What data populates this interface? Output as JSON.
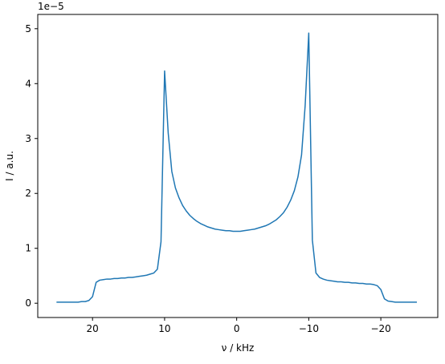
{
  "chart_data": {
    "type": "line",
    "xlabel": "ν / kHz",
    "ylabel": "I / a.u.",
    "y_offset_label": "1e−5",
    "x": [
      25,
      24.5,
      24,
      23.5,
      23,
      22.5,
      22,
      21.5,
      21,
      20.5,
      20,
      19.5,
      19,
      18.5,
      18,
      17.5,
      17,
      16.5,
      16,
      15.5,
      15,
      14.5,
      14,
      13.5,
      13,
      12.5,
      12,
      11.5,
      11,
      10.5,
      10,
      9.5,
      9,
      8.5,
      8,
      7.5,
      7,
      6.5,
      6,
      5.5,
      5,
      4.5,
      4,
      3.5,
      3,
      2.5,
      2,
      1.5,
      1,
      0.5,
      0,
      -0.5,
      -1,
      -1.5,
      -2,
      -2.5,
      -3,
      -3.5,
      -4,
      -4.5,
      -5,
      -5.5,
      -6,
      -6.5,
      -7,
      -7.5,
      -8,
      -8.5,
      -9,
      -9.5,
      -10,
      -10.5,
      -11,
      -11.5,
      -12,
      -12.5,
      -13,
      -13.5,
      -14,
      -14.5,
      -15,
      -15.5,
      -16,
      -16.5,
      -17,
      -17.5,
      -18,
      -18.5,
      -19,
      -19.5,
      -20,
      -20.5,
      -21,
      -21.5,
      -22,
      -22.5,
      -23,
      -23.5,
      -24,
      -24.5,
      -25
    ],
    "series": [
      {
        "color": "#1f77b4",
        "values": [
          0.02,
          0.02,
          0.02,
          0.02,
          0.02,
          0.02,
          0.02,
          0.03,
          0.03,
          0.05,
          0.12,
          0.38,
          0.42,
          0.43,
          0.44,
          0.44,
          0.45,
          0.45,
          0.46,
          0.46,
          0.47,
          0.47,
          0.48,
          0.49,
          0.5,
          0.51,
          0.53,
          0.55,
          0.62,
          1.12,
          4.23,
          3.1,
          2.4,
          2.1,
          1.92,
          1.78,
          1.68,
          1.6,
          1.54,
          1.49,
          1.45,
          1.42,
          1.39,
          1.37,
          1.35,
          1.34,
          1.33,
          1.32,
          1.32,
          1.31,
          1.31,
          1.31,
          1.32,
          1.33,
          1.34,
          1.35,
          1.37,
          1.39,
          1.41,
          1.44,
          1.48,
          1.52,
          1.58,
          1.65,
          1.75,
          1.88,
          2.05,
          2.3,
          2.7,
          3.6,
          4.92,
          1.15,
          0.55,
          0.47,
          0.44,
          0.42,
          0.41,
          0.4,
          0.39,
          0.39,
          0.38,
          0.38,
          0.37,
          0.37,
          0.36,
          0.36,
          0.35,
          0.35,
          0.34,
          0.32,
          0.25,
          0.08,
          0.04,
          0.03,
          0.02,
          0.02,
          0.02,
          0.02,
          0.02,
          0.02,
          0.02
        ]
      }
    ],
    "xlim": [
      27.6,
      -27.9
    ],
    "xticks": [
      20,
      10,
      0,
      {
        "value": -10,
        "label": "−10"
      },
      {
        "value": -20,
        "label": "−20"
      }
    ],
    "ylim": [
      -0.26,
      5.26
    ],
    "yticks": [
      0,
      1,
      2,
      3,
      4,
      5
    ]
  }
}
